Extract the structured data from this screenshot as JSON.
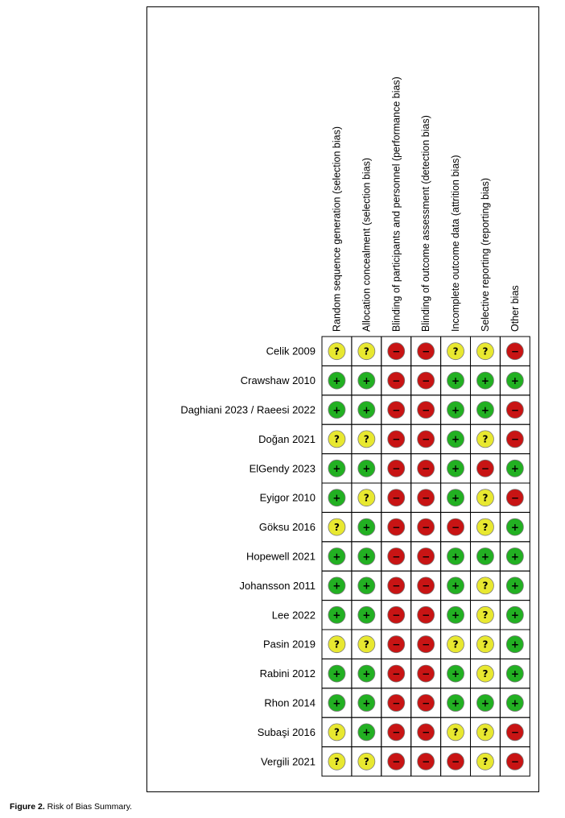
{
  "chart_data": {
    "type": "table",
    "title": "",
    "columns": [
      "Random sequence generation (selection bias)",
      "Allocation concealment (selection bias)",
      "Blinding of participants and personnel (performance bias)",
      "Blinding of outcome assessment (detection bias)",
      "Incomplete outcome data (attrition bias)",
      "Selective reporting (reporting bias)",
      "Other bias"
    ],
    "rows": [
      {
        "study": "Celik 2009",
        "ratings": [
          "unclear",
          "unclear",
          "high",
          "high",
          "unclear",
          "unclear",
          "high"
        ]
      },
      {
        "study": "Crawshaw 2010",
        "ratings": [
          "low",
          "low",
          "high",
          "high",
          "low",
          "low",
          "low"
        ]
      },
      {
        "study": "Daghiani 2023 / Raeesi 2022",
        "ratings": [
          "low",
          "low",
          "high",
          "high",
          "low",
          "low",
          "high"
        ]
      },
      {
        "study": "Doğan 2021",
        "ratings": [
          "unclear",
          "unclear",
          "high",
          "high",
          "low",
          "unclear",
          "high"
        ]
      },
      {
        "study": "ElGendy 2023",
        "ratings": [
          "low",
          "low",
          "high",
          "high",
          "low",
          "high",
          "low"
        ]
      },
      {
        "study": "Eyigor 2010",
        "ratings": [
          "low",
          "unclear",
          "high",
          "high",
          "low",
          "unclear",
          "high"
        ]
      },
      {
        "study": "Göksu 2016",
        "ratings": [
          "unclear",
          "low",
          "high",
          "high",
          "high",
          "unclear",
          "low"
        ]
      },
      {
        "study": "Hopewell 2021",
        "ratings": [
          "low",
          "low",
          "high",
          "high",
          "low",
          "low",
          "low"
        ]
      },
      {
        "study": "Johansson 2011",
        "ratings": [
          "low",
          "low",
          "high",
          "high",
          "low",
          "unclear",
          "low"
        ]
      },
      {
        "study": "Lee 2022",
        "ratings": [
          "low",
          "low",
          "high",
          "high",
          "low",
          "unclear",
          "low"
        ]
      },
      {
        "study": "Pasin 2019",
        "ratings": [
          "unclear",
          "unclear",
          "high",
          "high",
          "unclear",
          "unclear",
          "low"
        ]
      },
      {
        "study": "Rabini 2012",
        "ratings": [
          "low",
          "low",
          "high",
          "high",
          "low",
          "unclear",
          "low"
        ]
      },
      {
        "study": "Rhon 2014",
        "ratings": [
          "low",
          "low",
          "high",
          "high",
          "low",
          "low",
          "low"
        ]
      },
      {
        "study": "Subaşi 2016",
        "ratings": [
          "unclear",
          "low",
          "high",
          "high",
          "unclear",
          "unclear",
          "high"
        ]
      },
      {
        "study": "Vergili 2021",
        "ratings": [
          "unclear",
          "unclear",
          "high",
          "high",
          "high",
          "unclear",
          "high"
        ]
      }
    ],
    "rating_symbols": {
      "low": "+",
      "unclear": "?",
      "high": "−"
    },
    "rating_colors": {
      "low": "#22b022",
      "unclear": "#e8e830",
      "high": "#c81414"
    }
  },
  "caption": {
    "label": "Figure 2.",
    "text": " Risk of Bias Summary."
  }
}
